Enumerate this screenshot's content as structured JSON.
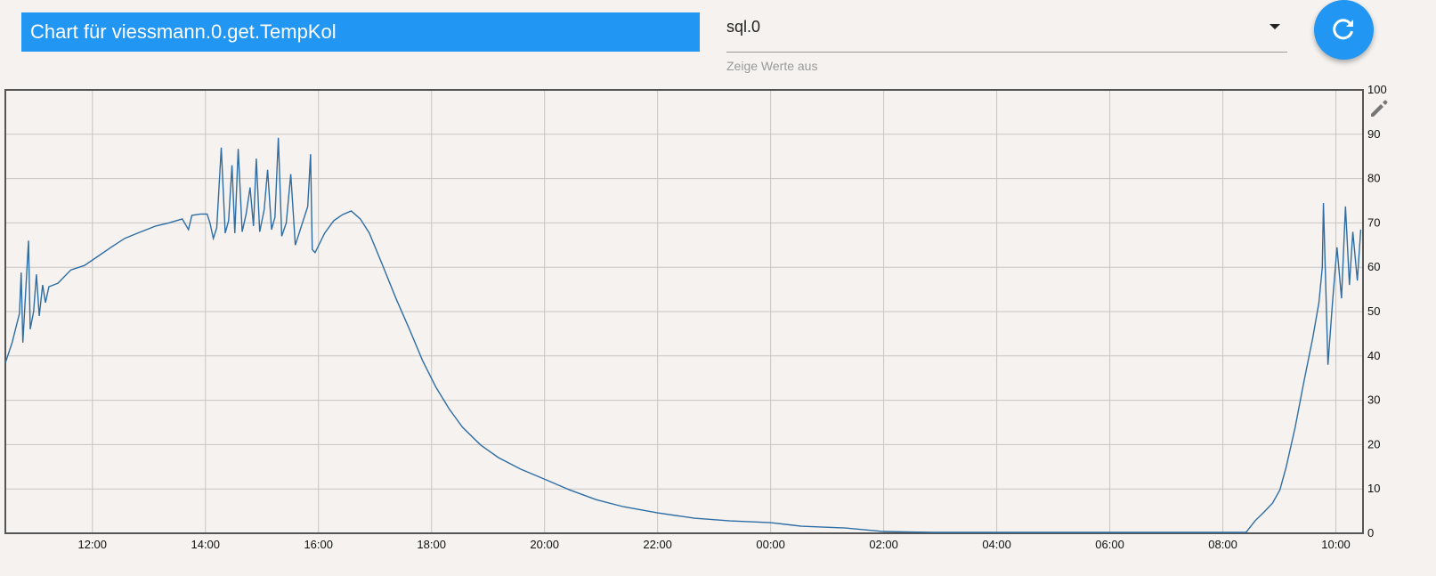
{
  "header": {
    "title": "Chart für viessmann.0.get.TempKol"
  },
  "select": {
    "value": "sql.0",
    "helper": "Zeige Werte aus"
  },
  "chart_data": {
    "type": "line",
    "x": [
      10.46,
      10.58,
      10.71,
      10.74,
      10.77,
      10.87,
      10.9,
      10.96,
      11.01,
      11.06,
      11.12,
      11.17,
      11.23,
      11.39,
      11.62,
      11.86,
      12.09,
      12.33,
      12.57,
      12.8,
      12.96,
      13.12,
      13.35,
      13.59,
      13.7,
      13.76,
      13.91,
      14.03,
      14.08,
      14.14,
      14.2,
      14.28,
      14.35,
      14.41,
      14.47,
      14.52,
      14.58,
      14.65,
      14.72,
      14.79,
      14.85,
      14.9,
      14.96,
      15.04,
      15.1,
      15.17,
      15.23,
      15.29,
      15.35,
      15.43,
      15.51,
      15.59,
      15.81,
      15.86,
      15.89,
      15.94,
      16.11,
      16.27,
      16.43,
      16.58,
      16.74,
      16.9,
      17.13,
      17.37,
      17.61,
      17.84,
      18.08,
      18.32,
      18.55,
      18.87,
      19.18,
      19.57,
      20.0,
      20.44,
      20.91,
      21.39,
      22.0,
      22.65,
      23.28,
      24.0,
      24.54,
      25.32,
      26.0,
      26.9,
      29.26,
      32.41,
      32.57,
      32.73,
      32.88,
      33.01,
      33.12,
      33.28,
      33.43,
      33.59,
      33.7,
      33.76,
      33.78,
      33.86,
      33.94,
      34.02,
      34.1,
      34.17,
      34.24,
      34.3,
      34.38,
      34.44
    ],
    "series": [
      {
        "color": "#2e6da4",
        "values": [
          38.4,
          43,
          49.6,
          58.8,
          43,
          66,
          46,
          50,
          58.4,
          49,
          56,
          52,
          55.6,
          56.4,
          59.4,
          60.4,
          62.4,
          64.5,
          66.5,
          67.7,
          68.5,
          69.3,
          70,
          70.9,
          68.5,
          71.7,
          72,
          72,
          70,
          66.5,
          68.9,
          87,
          67.7,
          70.5,
          83,
          67.7,
          86.7,
          68,
          72,
          78,
          69.3,
          84.5,
          68,
          73,
          82,
          68.5,
          71.3,
          89.2,
          67,
          70,
          81,
          65,
          73.7,
          85.5,
          64,
          63.3,
          67.7,
          70.5,
          71.9,
          72.7,
          70.9,
          67.7,
          60.6,
          53,
          46,
          39,
          32.9,
          27.9,
          23.9,
          19.9,
          17.1,
          14.5,
          12.2,
          9.8,
          7.6,
          6,
          4.6,
          3.4,
          2.8,
          2.4,
          1.6,
          1.2,
          0.4,
          0.2,
          0.2,
          0.2,
          2.8,
          4.8,
          6.8,
          9.8,
          14.9,
          23.9,
          33.9,
          44,
          52,
          60,
          74.5,
          38,
          52,
          64.5,
          53,
          73.7,
          56,
          68,
          57,
          68.5
        ]
      }
    ],
    "xlim": [
      10.46,
      34.48
    ],
    "xticks": [
      {
        "value": 12,
        "label": "12:00"
      },
      {
        "value": 14,
        "label": "14:00"
      },
      {
        "value": 16,
        "label": "16:00"
      },
      {
        "value": 18,
        "label": "18:00"
      },
      {
        "value": 20,
        "label": "20:00"
      },
      {
        "value": 22,
        "label": "22:00"
      },
      {
        "value": 24,
        "label": "00:00"
      },
      {
        "value": 26,
        "label": "02:00"
      },
      {
        "value": 28,
        "label": "04:00"
      },
      {
        "value": 30,
        "label": "06:00"
      },
      {
        "value": 32,
        "label": "08:00"
      },
      {
        "value": 34,
        "label": "10:00"
      }
    ],
    "ylim": [
      0,
      100
    ],
    "yticks": [
      0,
      10,
      20,
      30,
      40,
      50,
      60,
      70,
      80,
      90,
      100
    ],
    "grid": true
  }
}
